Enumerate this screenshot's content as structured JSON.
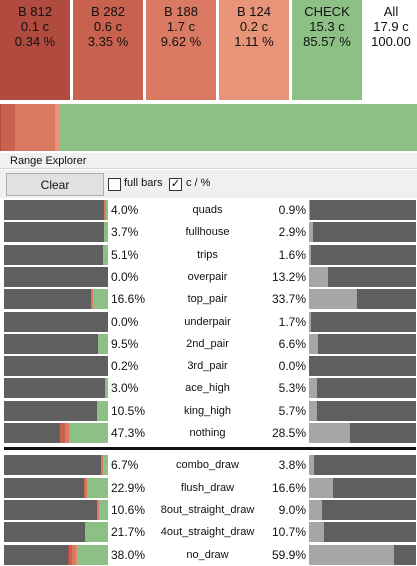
{
  "actions": [
    {
      "label": "B 812",
      "combos": "0.1 c",
      "pct": "0.34 %",
      "color": "#b24b3f"
    },
    {
      "label": "B 282",
      "combos": "0.6 c",
      "pct": "3.35 %",
      "color": "#c9614f"
    },
    {
      "label": "B 188",
      "combos": "1.7 c",
      "pct": "9.62 %",
      "color": "#db7a62"
    },
    {
      "label": "B 124",
      "combos": "0.2 c",
      "pct": "1.11 %",
      "color": "#e89478"
    },
    {
      "label": "CHECK",
      "combos": "15.3 c",
      "pct": "85.57 %",
      "color": "#8dc085"
    },
    {
      "label": "All",
      "combos": "17.9 c",
      "pct": "100.00",
      "color": "#ffffff"
    }
  ],
  "range_explorer": {
    "title": "Range Explorer",
    "clear_label": "Clear",
    "full_bars_label": "full bars",
    "full_bars_checked": false,
    "cpct_label": "c / %",
    "cpct_checked": true,
    "check_mark": "✓"
  },
  "colors": {
    "bar_empty": "#5f5f5f",
    "bar_fill": "#a6a6a6",
    "b812": "#b24b3f",
    "b282": "#c9614f",
    "b188": "#db7a62",
    "b124": "#e89478",
    "check": "#8dc085"
  },
  "made_hands": [
    {
      "name": "quads",
      "left_pct": "4.0%",
      "right_pct": "0.9%",
      "share": 0.04,
      "freq": 0.009,
      "mix": [
        0,
        0.05,
        0.45,
        0.1,
        0.4
      ]
    },
    {
      "name": "fullhouse",
      "left_pct": "3.7%",
      "right_pct": "2.9%",
      "share": 0.037,
      "freq": 0.029,
      "mix": [
        0,
        0,
        0,
        0,
        1
      ]
    },
    {
      "name": "trips",
      "left_pct": "5.1%",
      "right_pct": "1.6%",
      "share": 0.051,
      "freq": 0.016,
      "mix": [
        0,
        0,
        0,
        0.1,
        0.9
      ]
    },
    {
      "name": "overpair",
      "left_pct": "0.0%",
      "right_pct": "13.2%",
      "share": 0.0,
      "freq": 0.132,
      "mix": [
        0,
        0,
        0,
        0,
        1
      ]
    },
    {
      "name": "top_pair",
      "left_pct": "16.6%",
      "right_pct": "33.7%",
      "share": 0.166,
      "freq": 0.337,
      "mix": [
        0,
        0.03,
        0.1,
        0.04,
        0.83
      ]
    },
    {
      "name": "underpair",
      "left_pct": "0.0%",
      "right_pct": "1.7%",
      "share": 0.0,
      "freq": 0.017,
      "mix": [
        0,
        0,
        0,
        0,
        1
      ]
    },
    {
      "name": "2nd_pair",
      "left_pct": "9.5%",
      "right_pct": "6.6%",
      "share": 0.095,
      "freq": 0.066,
      "mix": [
        0,
        0,
        0,
        0,
        1
      ]
    },
    {
      "name": "3rd_pair",
      "left_pct": "0.2%",
      "right_pct": "0.0%",
      "share": 0.002,
      "freq": 0.0,
      "mix": [
        0,
        0,
        0,
        0,
        1
      ]
    },
    {
      "name": "ace_high",
      "left_pct": "3.0%",
      "right_pct": "5.3%",
      "share": 0.03,
      "freq": 0.053,
      "mix": [
        0,
        0,
        0,
        0,
        1
      ]
    },
    {
      "name": "king_high",
      "left_pct": "10.5%",
      "right_pct": "5.7%",
      "share": 0.105,
      "freq": 0.057,
      "mix": [
        0,
        0,
        0,
        0,
        1
      ]
    },
    {
      "name": "nothing",
      "left_pct": "47.3%",
      "right_pct": "28.5%",
      "share": 0.473,
      "freq": 0.285,
      "mix": [
        0.02,
        0.1,
        0.08,
        0.02,
        0.78
      ]
    }
  ],
  "draws": [
    {
      "name": "combo_draw",
      "left_pct": "6.7%",
      "right_pct": "3.8%",
      "share": 0.067,
      "freq": 0.038,
      "mix": [
        0,
        0,
        0.35,
        0,
        0.65
      ]
    },
    {
      "name": "flush_draw",
      "left_pct": "22.9%",
      "right_pct": "16.6%",
      "share": 0.229,
      "freq": 0.166,
      "mix": [
        0,
        0.05,
        0.06,
        0.02,
        0.87
      ]
    },
    {
      "name": "8out_straight_draw",
      "left_pct": "10.6%",
      "right_pct": "9.0%",
      "share": 0.106,
      "freq": 0.09,
      "mix": [
        0,
        0,
        0.15,
        0.1,
        0.75
      ]
    },
    {
      "name": "4out_straight_draw",
      "left_pct": "21.7%",
      "right_pct": "10.7%",
      "share": 0.217,
      "freq": 0.107,
      "mix": [
        0,
        0,
        0,
        0,
        1
      ]
    },
    {
      "name": "no_draw",
      "left_pct": "38.0%",
      "right_pct": "59.9%",
      "share": 0.38,
      "freq": 0.599,
      "mix": [
        0.01,
        0.07,
        0.11,
        0.02,
        0.79
      ]
    }
  ]
}
